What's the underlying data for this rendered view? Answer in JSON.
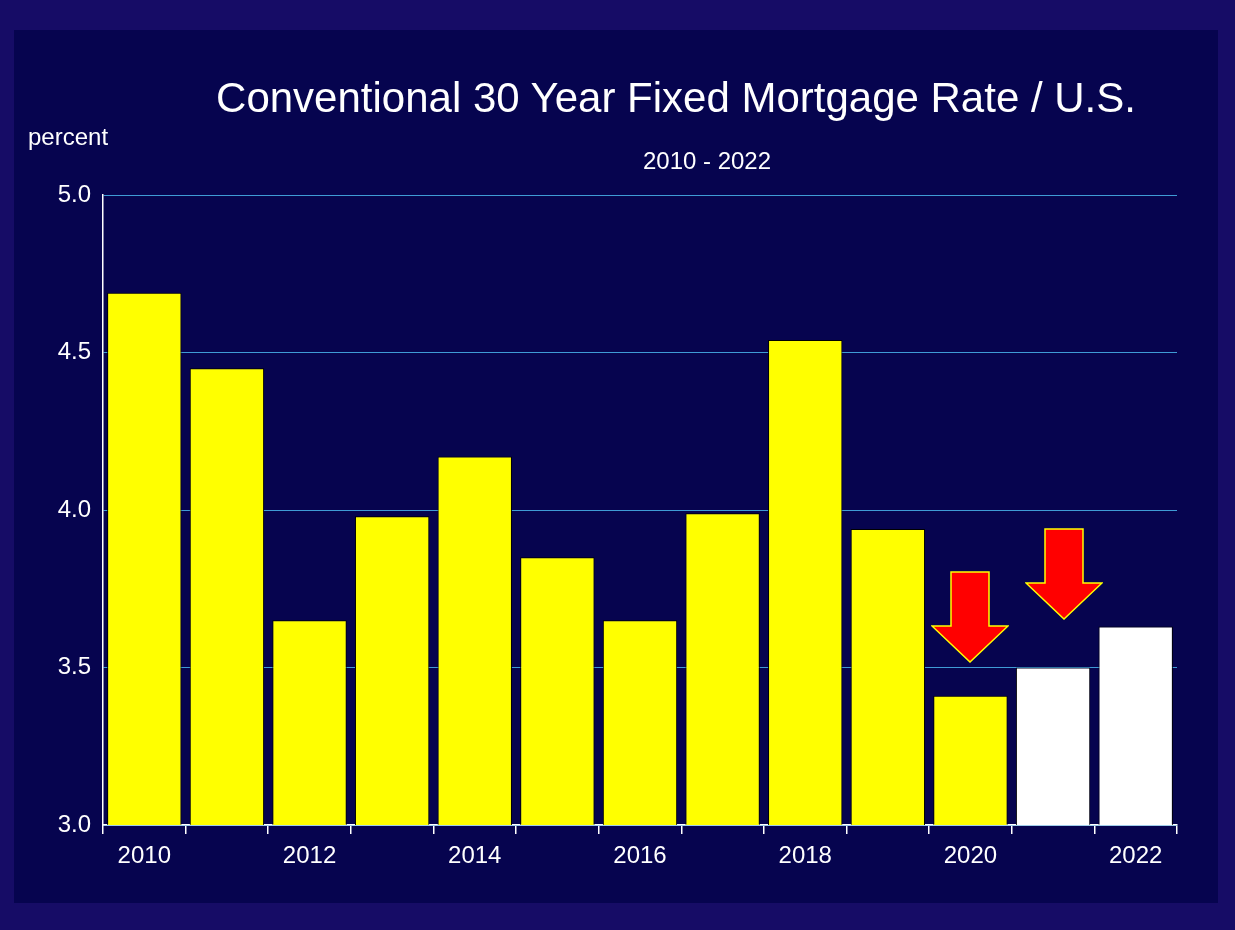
{
  "chart_data": {
    "type": "bar",
    "title": "Conventional 30 Year Fixed Mortgage Rate / U.S.",
    "subtitle": "2010 - 2022",
    "ylabel": "percent",
    "categories": [
      "2010",
      null,
      "2012",
      null,
      "2014",
      null,
      "2016",
      null,
      "2018",
      null,
      "2020",
      null,
      "2022"
    ],
    "values": [
      4.69,
      4.45,
      3.65,
      3.98,
      4.17,
      3.85,
      3.65,
      3.99,
      4.54,
      3.94,
      3.41,
      3.5,
      3.63
    ],
    "colors": [
      "#ffff00",
      "#ffff00",
      "#ffff00",
      "#ffff00",
      "#ffff00",
      "#ffff00",
      "#ffff00",
      "#ffff00",
      "#ffff00",
      "#ffff00",
      "#ffff00",
      "#ffffff",
      "#ffffff"
    ],
    "ylim": [
      3.0,
      5.0
    ],
    "yticks": [
      {
        "value": 3.0,
        "label": "3.0"
      },
      {
        "value": 3.5,
        "label": "3.5"
      },
      {
        "value": 4.0,
        "label": "4.0"
      },
      {
        "value": 4.5,
        "label": "4.5"
      },
      {
        "value": 5.0,
        "label": "5.0"
      }
    ],
    "grid": "y",
    "legend": false
  }
}
